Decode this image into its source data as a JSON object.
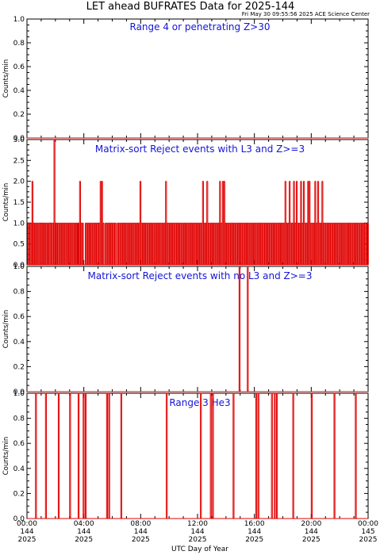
{
  "header": {
    "title": "LET ahead BUFRATES Data for 2025-144",
    "stamp": "Fri May 30 09:55:56 2025 ACE Science Center"
  },
  "chart_data": {
    "type": "line",
    "x_label": "UTC Day of Year",
    "x_range_hours": [
      0,
      24
    ],
    "x_ticks": [
      {
        "time": "00:00",
        "day": "144",
        "year": "2025"
      },
      {
        "time": "04:00",
        "day": "144",
        "year": "2025"
      },
      {
        "time": "08:00",
        "day": "144",
        "year": "2025"
      },
      {
        "time": "12:00",
        "day": "144",
        "year": "2025"
      },
      {
        "time": "16:00",
        "day": "144",
        "year": "2025"
      },
      {
        "time": "20:00",
        "day": "144",
        "year": "2025"
      },
      {
        "time": "00:00",
        "day": "145",
        "year": "2025"
      }
    ],
    "colors": {
      "trace": "#e00000",
      "panel_title": "#1515d8"
    },
    "panels": [
      {
        "title": "Range 4 or  penetrating Z>30",
        "ylabel": "Counts/min",
        "ylim": [
          0,
          1
        ],
        "yticks": [
          "0.0",
          "0.2",
          "0.4",
          "0.6",
          "0.8",
          "1.0"
        ],
        "baseline": 0,
        "events": []
      },
      {
        "title": "Matrix-sort Reject events with L3 and Z>=3",
        "ylabel": "Counts/min",
        "ylim": [
          0,
          3
        ],
        "yticks": [
          "0.0",
          "0.5",
          "1.0",
          "1.5",
          "2.0",
          "2.5",
          "3.0"
        ],
        "baseline": 0,
        "events": [
          [
            0.05,
            1
          ],
          [
            0.12,
            1
          ],
          [
            0.2,
            1
          ],
          [
            0.28,
            1
          ],
          [
            0.35,
            2
          ],
          [
            0.45,
            1
          ],
          [
            0.55,
            1
          ],
          [
            0.65,
            1
          ],
          [
            0.75,
            1
          ],
          [
            0.85,
            1
          ],
          [
            0.93,
            1
          ],
          [
            1.0,
            1
          ],
          [
            1.08,
            1
          ],
          [
            1.17,
            1
          ],
          [
            1.25,
            1
          ],
          [
            1.35,
            1
          ],
          [
            1.45,
            1
          ],
          [
            1.55,
            1
          ],
          [
            1.62,
            1
          ],
          [
            1.7,
            1
          ],
          [
            1.8,
            1
          ],
          [
            1.9,
            3
          ],
          [
            1.98,
            1
          ],
          [
            2.05,
            1
          ],
          [
            2.15,
            1
          ],
          [
            2.25,
            1
          ],
          [
            2.35,
            1
          ],
          [
            2.45,
            1
          ],
          [
            2.55,
            1
          ],
          [
            2.65,
            1
          ],
          [
            2.75,
            1
          ],
          [
            2.85,
            1
          ],
          [
            2.95,
            1
          ],
          [
            3.05,
            1
          ],
          [
            3.15,
            1
          ],
          [
            3.25,
            1
          ],
          [
            3.35,
            1
          ],
          [
            3.45,
            1
          ],
          [
            3.55,
            1
          ],
          [
            3.6,
            1
          ],
          [
            3.7,
            2
          ],
          [
            3.8,
            1
          ],
          [
            3.9,
            1
          ],
          [
            4.1,
            1
          ],
          [
            4.2,
            1
          ],
          [
            4.3,
            1
          ],
          [
            4.4,
            1
          ],
          [
            4.5,
            1
          ],
          [
            4.6,
            1
          ],
          [
            4.7,
            1
          ],
          [
            4.8,
            1
          ],
          [
            4.9,
            1
          ],
          [
            4.97,
            1
          ],
          [
            5.05,
            1
          ],
          [
            5.15,
            2
          ],
          [
            5.25,
            2
          ],
          [
            5.35,
            1
          ],
          [
            5.5,
            1
          ],
          [
            5.6,
            1
          ],
          [
            5.7,
            1
          ],
          [
            5.8,
            1
          ],
          [
            5.9,
            1
          ],
          [
            6.0,
            1
          ],
          [
            6.1,
            1
          ],
          [
            6.2,
            1
          ],
          [
            6.35,
            1
          ],
          [
            6.45,
            1
          ],
          [
            6.55,
            1
          ],
          [
            6.65,
            1
          ],
          [
            6.75,
            1
          ],
          [
            6.85,
            1
          ],
          [
            6.95,
            1
          ],
          [
            7.05,
            1
          ],
          [
            7.15,
            1
          ],
          [
            7.25,
            1
          ],
          [
            7.35,
            1
          ],
          [
            7.45,
            1
          ],
          [
            7.55,
            1
          ],
          [
            7.65,
            1
          ],
          [
            7.75,
            1
          ],
          [
            7.85,
            1
          ],
          [
            7.95,
            2
          ],
          [
            8.05,
            1
          ],
          [
            8.15,
            1
          ],
          [
            8.25,
            1
          ],
          [
            8.35,
            1
          ],
          [
            8.45,
            1
          ],
          [
            8.55,
            1
          ],
          [
            8.65,
            1
          ],
          [
            8.75,
            1
          ],
          [
            8.85,
            1
          ],
          [
            8.95,
            1
          ],
          [
            9.05,
            1
          ],
          [
            9.15,
            1
          ],
          [
            9.25,
            1
          ],
          [
            9.35,
            1
          ],
          [
            9.45,
            1
          ],
          [
            9.55,
            1
          ],
          [
            9.65,
            1
          ],
          [
            9.75,
            2
          ],
          [
            9.85,
            1
          ],
          [
            9.95,
            1
          ],
          [
            10.05,
            1
          ],
          [
            10.15,
            1
          ],
          [
            10.25,
            1
          ],
          [
            10.35,
            1
          ],
          [
            10.45,
            1
          ],
          [
            10.55,
            1
          ],
          [
            10.65,
            1
          ],
          [
            10.75,
            1
          ],
          [
            10.85,
            1
          ],
          [
            10.95,
            1
          ],
          [
            11.05,
            1
          ],
          [
            11.15,
            1
          ],
          [
            11.25,
            1
          ],
          [
            11.35,
            1
          ],
          [
            11.45,
            1
          ],
          [
            11.55,
            1
          ],
          [
            11.65,
            1
          ],
          [
            11.75,
            1
          ],
          [
            11.85,
            1
          ],
          [
            11.95,
            1
          ],
          [
            12.05,
            1
          ],
          [
            12.15,
            1
          ],
          [
            12.25,
            1
          ],
          [
            12.35,
            2
          ],
          [
            12.45,
            1
          ],
          [
            12.55,
            1
          ],
          [
            12.65,
            2
          ],
          [
            12.75,
            1
          ],
          [
            12.85,
            1
          ],
          [
            12.95,
            1
          ],
          [
            13.05,
            1
          ],
          [
            13.15,
            1
          ],
          [
            13.25,
            1
          ],
          [
            13.35,
            1
          ],
          [
            13.45,
            1
          ],
          [
            13.55,
            2
          ],
          [
            13.65,
            1
          ],
          [
            13.75,
            2
          ],
          [
            13.85,
            2
          ],
          [
            13.95,
            1
          ],
          [
            14.05,
            1
          ],
          [
            14.15,
            1
          ],
          [
            14.25,
            1
          ],
          [
            14.35,
            1
          ],
          [
            14.45,
            1
          ],
          [
            14.55,
            1
          ],
          [
            14.65,
            1
          ],
          [
            14.75,
            1
          ],
          [
            14.85,
            1
          ],
          [
            14.95,
            1
          ],
          [
            15.05,
            1
          ],
          [
            15.15,
            1
          ],
          [
            15.25,
            1
          ],
          [
            15.35,
            1
          ],
          [
            15.45,
            1
          ],
          [
            15.55,
            1
          ],
          [
            15.65,
            1
          ],
          [
            15.75,
            1
          ],
          [
            15.85,
            1
          ],
          [
            15.95,
            1
          ],
          [
            16.05,
            1
          ],
          [
            16.15,
            1
          ],
          [
            16.25,
            1
          ],
          [
            16.35,
            1
          ],
          [
            16.45,
            1
          ],
          [
            16.55,
            1
          ],
          [
            16.65,
            1
          ],
          [
            16.75,
            1
          ],
          [
            16.85,
            1
          ],
          [
            16.95,
            1
          ],
          [
            17.05,
            1
          ],
          [
            17.15,
            1
          ],
          [
            17.25,
            1
          ],
          [
            17.35,
            1
          ],
          [
            17.45,
            1
          ],
          [
            17.55,
            1
          ],
          [
            17.65,
            1
          ],
          [
            17.75,
            1
          ],
          [
            17.85,
            1
          ],
          [
            17.95,
            1
          ],
          [
            18.05,
            1
          ],
          [
            18.15,
            2
          ],
          [
            18.25,
            1
          ],
          [
            18.35,
            1
          ],
          [
            18.45,
            2
          ],
          [
            18.55,
            1
          ],
          [
            18.65,
            1
          ],
          [
            18.75,
            2
          ],
          [
            18.85,
            1
          ],
          [
            18.95,
            2
          ],
          [
            19.05,
            1
          ],
          [
            19.15,
            1
          ],
          [
            19.25,
            2
          ],
          [
            19.35,
            1
          ],
          [
            19.45,
            2
          ],
          [
            19.55,
            1
          ],
          [
            19.65,
            1
          ],
          [
            19.75,
            2
          ],
          [
            19.85,
            2
          ],
          [
            19.95,
            1
          ],
          [
            20.05,
            1
          ],
          [
            20.15,
            1
          ],
          [
            20.25,
            2
          ],
          [
            20.35,
            1
          ],
          [
            20.45,
            2
          ],
          [
            20.55,
            1
          ],
          [
            20.65,
            1
          ],
          [
            20.75,
            2
          ],
          [
            20.85,
            1
          ],
          [
            20.95,
            1
          ],
          [
            21.05,
            1
          ],
          [
            21.15,
            1
          ],
          [
            21.25,
            1
          ],
          [
            21.35,
            1
          ],
          [
            21.45,
            1
          ],
          [
            21.55,
            1
          ],
          [
            21.65,
            1
          ],
          [
            21.75,
            1
          ],
          [
            21.85,
            1
          ],
          [
            21.95,
            1
          ],
          [
            22.05,
            1
          ],
          [
            22.15,
            1
          ],
          [
            22.25,
            1
          ],
          [
            22.35,
            1
          ],
          [
            22.45,
            1
          ],
          [
            22.55,
            1
          ],
          [
            22.65,
            1
          ],
          [
            22.75,
            1
          ],
          [
            22.85,
            1
          ],
          [
            22.95,
            1
          ],
          [
            23.05,
            1
          ],
          [
            23.15,
            1
          ],
          [
            23.25,
            1
          ],
          [
            23.35,
            1
          ],
          [
            23.45,
            1
          ],
          [
            23.55,
            1
          ],
          [
            23.65,
            1
          ],
          [
            23.75,
            1
          ],
          [
            23.85,
            1
          ],
          [
            23.95,
            1
          ]
        ]
      },
      {
        "title": "Matrix-sort Reject events with no L3 and Z>=3",
        "ylabel": "Counts/min",
        "ylim": [
          0,
          1
        ],
        "yticks": [
          "0.0",
          "0.2",
          "0.4",
          "0.6",
          "0.8",
          "1.0"
        ],
        "baseline": 0,
        "events": [
          [
            14.92,
            1
          ],
          [
            15.5,
            1
          ]
        ]
      },
      {
        "title": "Range 3 He3",
        "ylabel": "Counts/min",
        "ylim": [
          0,
          1
        ],
        "yticks": [
          "0.0",
          "0.2",
          "0.4",
          "0.6",
          "0.8",
          "1.0"
        ],
        "baseline": 0,
        "events": [
          [
            0.6,
            1
          ],
          [
            1.3,
            1
          ],
          [
            2.2,
            1
          ],
          [
            3.0,
            1
          ],
          [
            3.6,
            1
          ],
          [
            3.95,
            1
          ],
          [
            4.1,
            1
          ],
          [
            5.6,
            1
          ],
          [
            5.75,
            1
          ],
          [
            6.6,
            1
          ],
          [
            9.8,
            1
          ],
          [
            12.2,
            1
          ],
          [
            12.9,
            1
          ],
          [
            13.05,
            1
          ],
          [
            14.5,
            1
          ],
          [
            16.1,
            1
          ],
          [
            16.25,
            1
          ],
          [
            17.2,
            1
          ],
          [
            17.4,
            1
          ],
          [
            17.55,
            1
          ],
          [
            18.7,
            1
          ],
          [
            20.0,
            1
          ],
          [
            21.6,
            1
          ],
          [
            23.1,
            1
          ]
        ]
      }
    ]
  }
}
